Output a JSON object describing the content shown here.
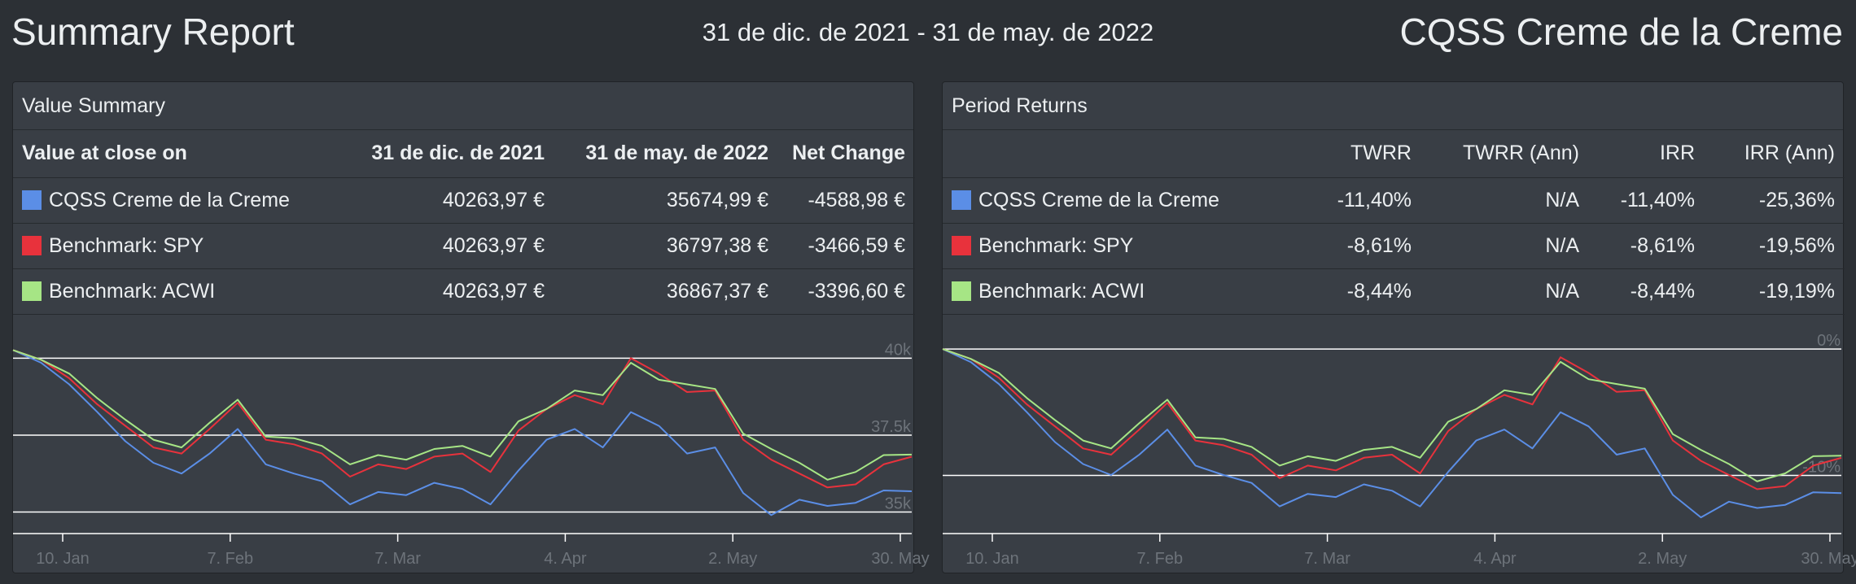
{
  "header": {
    "title": "Summary Report",
    "date_range": "31 de dic. de 2021 - 31 de may. de 2022",
    "portfolio": "CQSS Creme de la Creme"
  },
  "colors": {
    "portfolio": "#5b8ee6",
    "spy": "#e8323c",
    "acwi": "#a6e585",
    "background": "#2c3035",
    "panel": "#393e45"
  },
  "value_summary": {
    "title": "Value Summary",
    "columns": [
      "Value at close on",
      "31 de dic. de 2021",
      "31 de may. de 2022",
      "Net Change"
    ],
    "rows": [
      {
        "name": "CQSS Creme de la Creme",
        "start": "40263,97 €",
        "end": "35674,99 €",
        "change": "-4588,98 €"
      },
      {
        "name": "Benchmark: SPY",
        "start": "40263,97 €",
        "end": "36797,38 €",
        "change": "-3466,59 €"
      },
      {
        "name": "Benchmark: ACWI",
        "start": "40263,97 €",
        "end": "36867,37 €",
        "change": "-3396,60 €"
      }
    ]
  },
  "period_returns": {
    "title": "Period Returns",
    "columns": [
      "",
      "TWRR",
      "TWRR (Ann)",
      "IRR",
      "IRR (Ann)"
    ],
    "rows": [
      {
        "name": "CQSS Creme de la Creme",
        "twrr": "-11,40%",
        "twrr_ann": "N/A",
        "irr": "-11,40%",
        "irr_ann": "-25,36%"
      },
      {
        "name": "Benchmark: SPY",
        "twrr": "-8,61%",
        "twrr_ann": "N/A",
        "irr": "-8,61%",
        "irr_ann": "-19,56%"
      },
      {
        "name": "Benchmark: ACWI",
        "twrr": "-8,44%",
        "twrr_ann": "N/A",
        "irr": "-8,44%",
        "irr_ann": "-19,19%"
      }
    ]
  },
  "chart_data": [
    {
      "type": "line",
      "x_ticks": [
        "10. Jan",
        "7. Feb",
        "7. Mar",
        "4. Apr",
        "2. May",
        "30. May"
      ],
      "y_ticks": [
        "40k",
        "37.5k",
        "35k"
      ],
      "y_tick_values": [
        40000,
        37500,
        35000
      ],
      "ylim": [
        34300,
        40750
      ],
      "grid": true,
      "series": [
        {
          "name": "CQSS Creme de la Creme",
          "color": "#5b8ee6",
          "values": [
            40263.97,
            39850,
            39150,
            38250,
            37300,
            36600,
            36250,
            36900,
            37700,
            36550,
            36250,
            36000,
            35250,
            35650,
            35550,
            35950,
            35750,
            35250,
            36350,
            37350,
            37700,
            37100,
            38250,
            37800,
            36900,
            37100,
            35620,
            34900,
            35400,
            35200,
            35300,
            35700,
            35674.99
          ]
        },
        {
          "name": "Benchmark: SPY",
          "color": "#e8323c",
          "values": [
            40263.97,
            39950,
            39350,
            38500,
            37800,
            37100,
            36900,
            37700,
            38550,
            37350,
            37200,
            36900,
            36150,
            36550,
            36400,
            36800,
            36900,
            36300,
            37650,
            38350,
            38800,
            38500,
            40000,
            39500,
            38900,
            38950,
            37350,
            36700,
            36250,
            35800,
            35900,
            36550,
            36797.38
          ]
        },
        {
          "name": "Benchmark: ACWI",
          "color": "#a6e585",
          "values": [
            40263.97,
            39950,
            39500,
            38700,
            38000,
            37350,
            37100,
            37900,
            38650,
            37450,
            37400,
            37150,
            36550,
            36850,
            36700,
            37050,
            37150,
            36800,
            37950,
            38350,
            38950,
            38800,
            39850,
            39300,
            39150,
            39000,
            37550,
            37050,
            36600,
            36050,
            36300,
            36850,
            36867.37
          ]
        }
      ]
    },
    {
      "type": "line",
      "x_ticks": [
        "10. Jan",
        "7. Feb",
        "7. Mar",
        "4. Apr",
        "2. May",
        "30. May"
      ],
      "y_ticks": [
        "0%",
        "-10%"
      ],
      "y_tick_values": [
        0,
        -10
      ],
      "ylim": [
        -14.6,
        1.1
      ],
      "grid": true,
      "series": [
        {
          "name": "CQSS Creme de la Creme",
          "color": "#5b8ee6",
          "values": [
            0,
            -1.03,
            -2.77,
            -5.0,
            -7.36,
            -9.1,
            -9.97,
            -8.36,
            -6.37,
            -9.22,
            -9.97,
            -10.59,
            -12.45,
            -11.46,
            -11.71,
            -10.71,
            -11.21,
            -12.45,
            -9.72,
            -7.24,
            -6.37,
            -7.86,
            -5.0,
            -6.12,
            -8.36,
            -7.86,
            -11.54,
            -13.32,
            -12.08,
            -12.57,
            -12.33,
            -11.33,
            -11.4
          ]
        },
        {
          "name": "Benchmark: SPY",
          "color": "#e8323c",
          "values": [
            0,
            -0.78,
            -2.27,
            -4.38,
            -6.12,
            -7.86,
            -8.36,
            -6.37,
            -4.26,
            -7.24,
            -7.61,
            -8.36,
            -10.22,
            -9.22,
            -9.6,
            -8.6,
            -8.36,
            -9.84,
            -6.49,
            -4.75,
            -3.63,
            -4.38,
            -0.65,
            -1.89,
            -3.39,
            -3.26,
            -7.24,
            -8.85,
            -9.97,
            -11.09,
            -10.84,
            -9.22,
            -8.61
          ]
        },
        {
          "name": "Benchmark: ACWI",
          "color": "#a6e585",
          "values": [
            0,
            -0.78,
            -1.89,
            -3.88,
            -5.62,
            -7.24,
            -7.86,
            -5.87,
            -4.01,
            -6.99,
            -7.11,
            -7.74,
            -9.22,
            -8.48,
            -8.85,
            -7.98,
            -7.74,
            -8.6,
            -5.75,
            -4.75,
            -3.26,
            -3.63,
            -1.02,
            -2.39,
            -2.77,
            -3.14,
            -6.74,
            -7.98,
            -9.1,
            -10.47,
            -9.84,
            -8.48,
            -8.44
          ]
        }
      ]
    }
  ]
}
